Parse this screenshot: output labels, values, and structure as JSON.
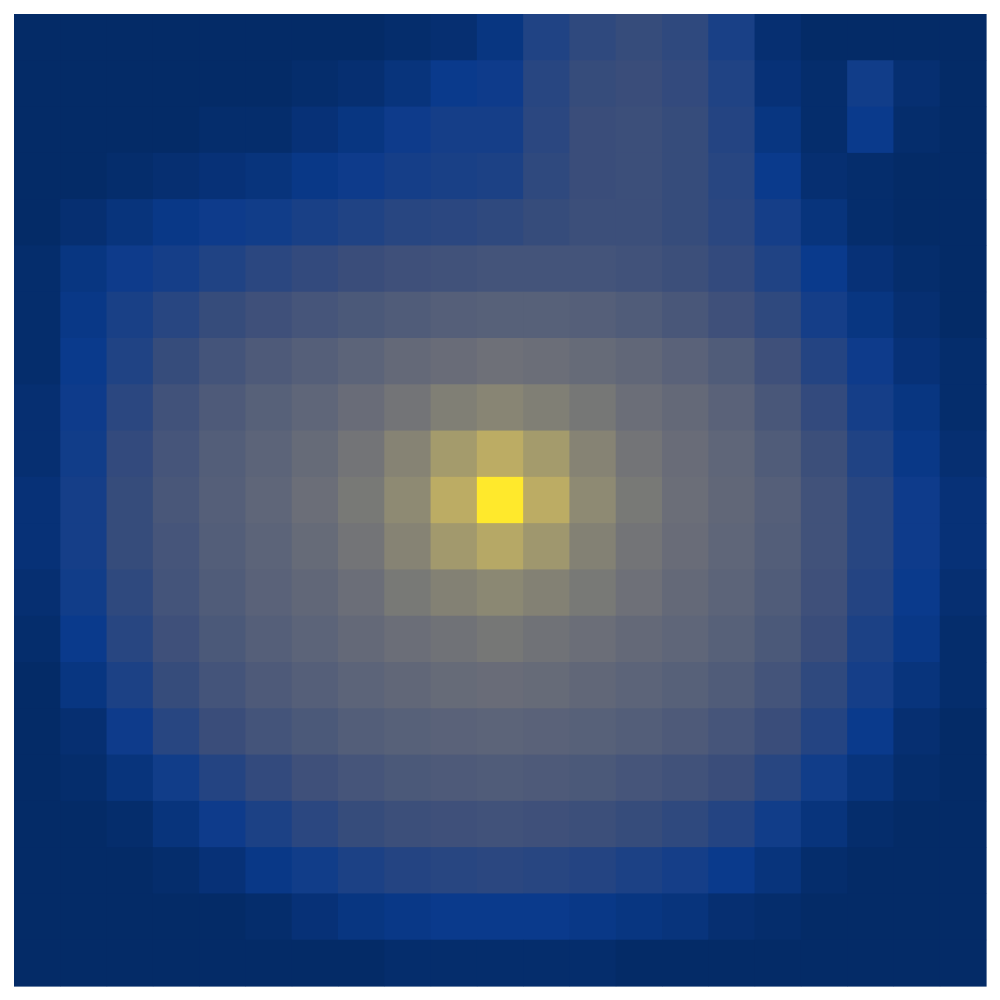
{
  "chart_data": {
    "type": "heatmap",
    "colormap": "cividis",
    "zlim": [
      0,
      100
    ],
    "values": [
      [
        5,
        5,
        5,
        5,
        5,
        5,
        5,
        5,
        6,
        7,
        10,
        18,
        22,
        24,
        22,
        16,
        7,
        5,
        5,
        5,
        5
      ],
      [
        5,
        5,
        5,
        5,
        5,
        5,
        6,
        7,
        9,
        12,
        13,
        20,
        24,
        25,
        23,
        18,
        8,
        6,
        14,
        7,
        5
      ],
      [
        5,
        5,
        5,
        5,
        6,
        6,
        8,
        10,
        13,
        15,
        15,
        21,
        25,
        26,
        24,
        19,
        10,
        6,
        12,
        6,
        5
      ],
      [
        5,
        5,
        6,
        7,
        8,
        9,
        11,
        13,
        15,
        16,
        17,
        22,
        25,
        26,
        24,
        20,
        12,
        7,
        6,
        5,
        5
      ],
      [
        5,
        7,
        9,
        11,
        13,
        14,
        16,
        18,
        20,
        21,
        22,
        24,
        26,
        26,
        24,
        21,
        15,
        9,
        6,
        5,
        5
      ],
      [
        6,
        10,
        13,
        15,
        18,
        21,
        23,
        25,
        27,
        28,
        29,
        29,
        29,
        28,
        26,
        23,
        18,
        12,
        8,
        6,
        5
      ],
      [
        6,
        11,
        16,
        20,
        24,
        27,
        30,
        32,
        34,
        36,
        37,
        37,
        36,
        34,
        31,
        27,
        22,
        15,
        10,
        7,
        5
      ],
      [
        6,
        12,
        18,
        24,
        29,
        33,
        36,
        39,
        42,
        44,
        46,
        45,
        43,
        41,
        38,
        34,
        27,
        19,
        13,
        8,
        6
      ],
      [
        7,
        13,
        21,
        28,
        33,
        37,
        40,
        44,
        48,
        53,
        56,
        53,
        49,
        45,
        42,
        38,
        31,
        23,
        15,
        10,
        6
      ],
      [
        7,
        14,
        23,
        30,
        35,
        39,
        43,
        48,
        55,
        66,
        74,
        66,
        55,
        48,
        44,
        40,
        34,
        26,
        18,
        11,
        7
      ],
      [
        8,
        15,
        24,
        31,
        36,
        40,
        45,
        50,
        58,
        74,
        100,
        74,
        58,
        50,
        45,
        41,
        36,
        28,
        20,
        13,
        8
      ],
      [
        8,
        15,
        24,
        30,
        35,
        39,
        43,
        48,
        55,
        65,
        72,
        64,
        54,
        48,
        44,
        40,
        35,
        28,
        20,
        13,
        8
      ],
      [
        7,
        14,
        22,
        29,
        34,
        38,
        41,
        45,
        50,
        54,
        57,
        54,
        50,
        46,
        42,
        39,
        34,
        27,
        19,
        12,
        7
      ],
      [
        6,
        12,
        20,
        27,
        32,
        36,
        39,
        42,
        45,
        47,
        49,
        47,
        45,
        42,
        40,
        37,
        32,
        25,
        17,
        11,
        6
      ],
      [
        5,
        10,
        17,
        24,
        29,
        33,
        36,
        39,
        41,
        43,
        44,
        43,
        41,
        39,
        37,
        34,
        29,
        22,
        15,
        9,
        6
      ],
      [
        5,
        7,
        13,
        20,
        25,
        29,
        32,
        35,
        37,
        38,
        39,
        38,
        37,
        35,
        33,
        30,
        25,
        19,
        12,
        7,
        5
      ],
      [
        5,
        6,
        9,
        14,
        19,
        23,
        27,
        30,
        32,
        33,
        34,
        33,
        32,
        30,
        28,
        25,
        20,
        14,
        9,
        6,
        5
      ],
      [
        5,
        5,
        6,
        9,
        13,
        17,
        21,
        24,
        26,
        27,
        28,
        27,
        26,
        24,
        22,
        19,
        14,
        9,
        6,
        5,
        5
      ],
      [
        5,
        5,
        5,
        6,
        8,
        11,
        14,
        17,
        19,
        20,
        21,
        20,
        19,
        17,
        15,
        12,
        9,
        6,
        5,
        5,
        5
      ],
      [
        5,
        5,
        5,
        5,
        5,
        6,
        8,
        10,
        11,
        12,
        12,
        12,
        11,
        10,
        9,
        7,
        6,
        5,
        5,
        5,
        5
      ],
      [
        5,
        5,
        5,
        5,
        5,
        5,
        5,
        5,
        6,
        6,
        6,
        6,
        6,
        5,
        5,
        5,
        5,
        5,
        5,
        5,
        5
      ]
    ]
  }
}
